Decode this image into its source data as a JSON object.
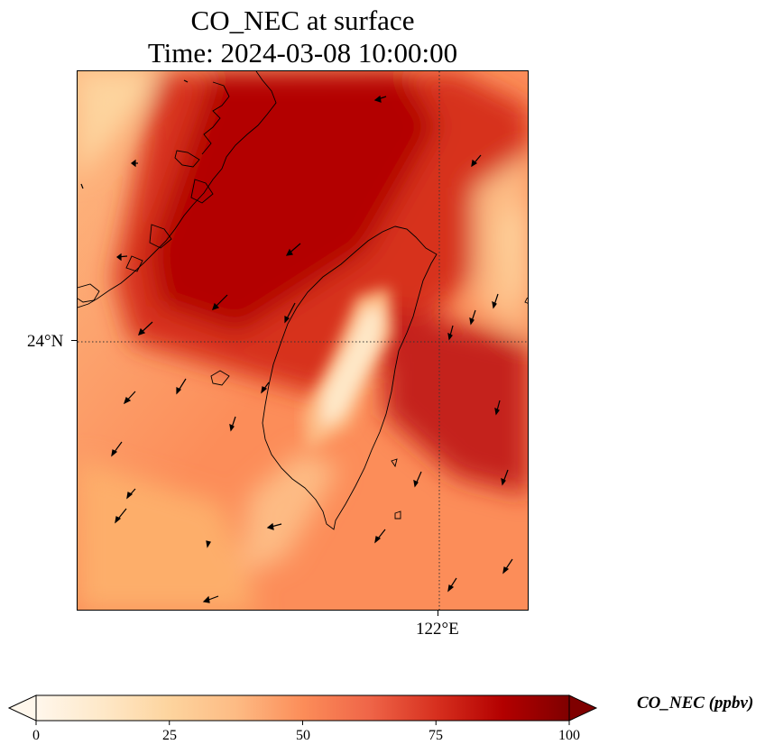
{
  "title": {
    "line1": "CO_NEC at surface",
    "line2": "Time: 2024-03-08 10:00:00"
  },
  "map": {
    "variable": "CO_NEC",
    "level": "surface",
    "time": "2024-03-08 10:00:00",
    "lat_gridline": {
      "value": 24,
      "label": "24°N"
    },
    "lon_gridline": {
      "value": 122,
      "label": "122°E"
    },
    "gridline_style": "dotted",
    "overlays": [
      "wind-vectors",
      "coastlines"
    ]
  },
  "colorbar": {
    "label": "CO_NEC (ppbv)",
    "min": 0,
    "max": 100,
    "ticks": [
      "0",
      "25",
      "50",
      "75",
      "100"
    ],
    "extend": "both",
    "colormap": "OrRd",
    "stops": [
      "#fff7ec",
      "#fee8c8",
      "#fdd49e",
      "#fdbb84",
      "#fc8d59",
      "#ef6548",
      "#d7301f",
      "#b30000",
      "#7f0000"
    ]
  },
  "colors": {
    "coastline": "#000000",
    "vector": "#000000",
    "background_field": "#fc8d59",
    "plume_high": "#b30000",
    "island_interior_low": "#fee8c8"
  }
}
